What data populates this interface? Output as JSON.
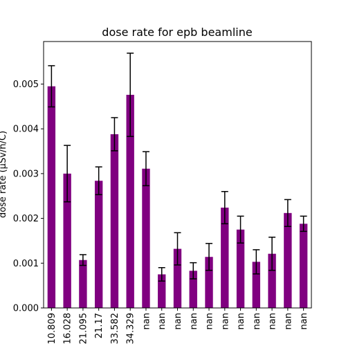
{
  "chart_data": {
    "type": "bar",
    "title": "dose rate for epb beamline",
    "xlabel": "",
    "ylabel": "dose rate (μSv/h/C)",
    "categories": [
      "10.809",
      "16.028",
      "21.095",
      "21.17",
      "33.582",
      "34.329",
      "nan",
      "nan",
      "nan",
      "nan",
      "nan",
      "nan",
      "nan",
      "nan",
      "nan",
      "nan",
      "nan"
    ],
    "series": [
      {
        "values": [
          0.00495,
          0.003,
          0.00107,
          0.00284,
          0.00388,
          0.00476,
          0.00311,
          0.00075,
          0.00132,
          0.00083,
          0.00114,
          0.00224,
          0.00175,
          0.00103,
          0.00121,
          0.00212,
          0.00188
        ],
        "errors": [
          0.00046,
          0.00063,
          0.00012,
          0.00031,
          0.00037,
          0.00093,
          0.00038,
          0.00015,
          0.00036,
          0.00018,
          0.0003,
          0.00036,
          0.0003,
          0.00027,
          0.00037,
          0.0003,
          0.00017
        ]
      }
    ],
    "ylim": [
      0,
      0.00595
    ],
    "yticks": [
      0.0,
      0.001,
      0.002,
      0.003,
      0.004,
      0.005
    ],
    "ytick_labels": [
      "0.000",
      "0.001",
      "0.002",
      "0.003",
      "0.004",
      "0.005"
    ],
    "bar_color": "#800080",
    "error_color": "#000000",
    "grid": false,
    "legend": "none"
  }
}
